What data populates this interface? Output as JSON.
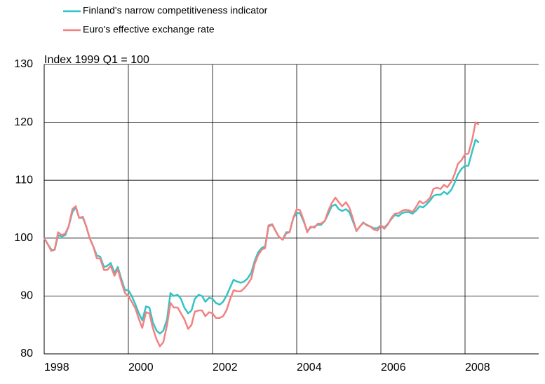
{
  "chart_data": {
    "type": "line",
    "annotation": "Index 1999 Q1 = 100",
    "x": [
      1998.0,
      1998.08,
      1998.17,
      1998.25,
      1998.33,
      1998.42,
      1998.5,
      1998.58,
      1998.67,
      1998.75,
      1998.83,
      1998.92,
      1999.0,
      1999.08,
      1999.17,
      1999.25,
      1999.33,
      1999.42,
      1999.5,
      1999.58,
      1999.67,
      1999.75,
      1999.83,
      1999.92,
      2000.0,
      2000.08,
      2000.17,
      2000.25,
      2000.33,
      2000.42,
      2000.5,
      2000.58,
      2000.67,
      2000.75,
      2000.83,
      2000.92,
      2001.0,
      2001.08,
      2001.17,
      2001.25,
      2001.33,
      2001.42,
      2001.5,
      2001.58,
      2001.67,
      2001.75,
      2001.83,
      2001.92,
      2002.0,
      2002.08,
      2002.17,
      2002.25,
      2002.33,
      2002.42,
      2002.5,
      2002.58,
      2002.67,
      2002.75,
      2002.83,
      2002.92,
      2003.0,
      2003.08,
      2003.17,
      2003.25,
      2003.33,
      2003.42,
      2003.5,
      2003.58,
      2003.67,
      2003.75,
      2003.83,
      2003.92,
      2004.0,
      2004.08,
      2004.17,
      2004.25,
      2004.33,
      2004.42,
      2004.5,
      2004.58,
      2004.67,
      2004.75,
      2004.83,
      2004.92,
      2005.0,
      2005.08,
      2005.17,
      2005.25,
      2005.33,
      2005.42,
      2005.5,
      2005.58,
      2005.67,
      2005.75,
      2005.83,
      2005.92,
      2006.0,
      2006.08,
      2006.17,
      2006.25,
      2006.33,
      2006.42,
      2006.5,
      2006.58,
      2006.67,
      2006.75,
      2006.83,
      2006.92,
      2007.0,
      2007.08,
      2007.17,
      2007.25,
      2007.33,
      2007.42,
      2007.5,
      2007.58,
      2007.67,
      2007.75,
      2007.83,
      2007.92,
      2008.0,
      2008.08,
      2008.17,
      2008.25,
      2008.33
    ],
    "series": [
      {
        "name": "Finland's narrow competitiveness indicator",
        "color": "#33c4c4",
        "values": [
          100,
          99,
          98,
          98,
          100.5,
          100.3,
          100.5,
          102,
          104.5,
          105.3,
          103.5,
          103.5,
          102,
          100,
          98.5,
          97,
          96.8,
          95,
          95.2,
          95.7,
          94,
          95,
          93,
          91,
          91,
          90,
          88.5,
          87,
          85.8,
          88.2,
          88,
          85.5,
          84,
          83.5,
          84,
          86,
          90.5,
          90,
          90.2,
          89.5,
          88,
          87,
          87.5,
          89.5,
          90.2,
          90,
          89,
          89.7,
          89.5,
          88.8,
          88.5,
          89,
          90,
          91.5,
          92.8,
          92.5,
          92.3,
          92.5,
          93,
          94,
          96,
          97.5,
          98.3,
          98.6,
          102,
          102.3,
          101.2,
          100.2,
          99.8,
          101,
          101,
          103.5,
          104.3,
          104.3,
          102.8,
          101.2,
          101.8,
          102,
          102.3,
          102.3,
          103,
          104.2,
          105.5,
          105.8,
          105,
          104.7,
          105,
          104.5,
          103,
          101.3,
          102,
          102.7,
          102.2,
          102,
          101.7,
          101.7,
          102.2,
          101.8,
          102.5,
          103.3,
          104,
          103.8,
          104.3,
          104.5,
          104.5,
          104.2,
          104.7,
          105.5,
          105.3,
          105.8,
          106.5,
          107.3,
          107.5,
          107.5,
          108,
          107.6,
          108.3,
          109.5,
          111,
          112,
          112.5,
          112.5,
          115,
          117,
          116.5
        ]
      },
      {
        "name": "Euro's effective exchange rate",
        "color": "#f28282",
        "values": [
          100,
          99,
          97.8,
          98,
          101,
          100.5,
          100.8,
          102,
          105,
          105.5,
          103.5,
          103.7,
          102,
          100,
          98.5,
          96.5,
          96.5,
          94.5,
          94.5,
          95.2,
          93.5,
          94.6,
          92.5,
          90.5,
          90,
          89,
          87.8,
          86,
          84.5,
          87.2,
          87,
          84.5,
          82.5,
          81.3,
          82,
          85,
          88.8,
          88,
          88,
          87,
          86,
          84.3,
          85,
          87.3,
          87.5,
          87.5,
          86.5,
          87.2,
          87,
          86.2,
          86.2,
          86.5,
          87.5,
          89.5,
          91,
          90.8,
          90.8,
          91.3,
          92,
          93,
          95.5,
          97,
          98,
          98.3,
          102.2,
          102.4,
          101.2,
          100.2,
          99.7,
          100.8,
          101,
          103.5,
          105,
          104.8,
          103,
          101,
          102,
          101.8,
          102.5,
          102.5,
          103,
          104.7,
          106,
          107,
          106.2,
          105.5,
          106.2,
          105.3,
          103.5,
          101.2,
          102,
          102.6,
          102.3,
          102,
          101.5,
          101.3,
          102.2,
          101.6,
          102.4,
          103.5,
          104.2,
          104.3,
          104.7,
          104.9,
          104.8,
          104.5,
          105.3,
          106.4,
          106,
          106.3,
          107,
          108.5,
          108.7,
          108.5,
          109.2,
          108.8,
          109.7,
          111,
          112.8,
          113.5,
          114.5,
          114.6,
          117,
          120,
          119.6
        ]
      }
    ],
    "xlim": [
      1998,
      2009.75
    ],
    "xticks": [
      1998,
      2000,
      2002,
      2004,
      2006,
      2008
    ],
    "ylim": [
      80,
      130
    ],
    "yticks": [
      80,
      90,
      100,
      110,
      120,
      130
    ],
    "grid": true
  }
}
